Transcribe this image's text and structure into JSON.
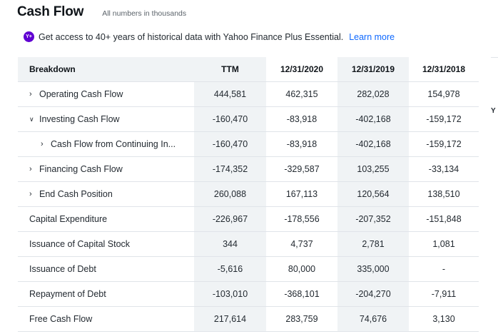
{
  "header": {
    "title": "Cash Flow",
    "subtitle": "All numbers in thousands"
  },
  "promo": {
    "badge": "Y+",
    "text": "Get access to 40+ years of historical data with Yahoo Finance Plus Essential.",
    "link": "Learn more"
  },
  "table": {
    "columns": [
      "Breakdown",
      "TTM",
      "12/31/2020",
      "12/31/2019",
      "12/31/2018"
    ],
    "rows": [
      {
        "label": "Operating Cash Flow",
        "values": [
          "444,581",
          "462,315",
          "282,028",
          "154,978"
        ]
      },
      {
        "label": "Investing Cash Flow",
        "values": [
          "-160,470",
          "-83,918",
          "-402,168",
          "-159,172"
        ]
      },
      {
        "label": "Cash Flow from Continuing In...",
        "values": [
          "-160,470",
          "-83,918",
          "-402,168",
          "-159,172"
        ]
      },
      {
        "label": "Financing Cash Flow",
        "values": [
          "-174,352",
          "-329,587",
          "103,255",
          "-33,134"
        ]
      },
      {
        "label": "End Cash Position",
        "values": [
          "260,088",
          "167,113",
          "120,564",
          "138,510"
        ]
      },
      {
        "label": "Capital Expenditure",
        "values": [
          "-226,967",
          "-178,556",
          "-207,352",
          "-151,848"
        ]
      },
      {
        "label": "Issuance of Capital Stock",
        "values": [
          "344",
          "4,737",
          "2,781",
          "1,081"
        ]
      },
      {
        "label": "Issuance of Debt",
        "values": [
          "-5,616",
          "80,000",
          "335,000",
          "-"
        ]
      },
      {
        "label": "Repayment of Debt",
        "values": [
          "-103,010",
          "-368,101",
          "-204,270",
          "-7,911"
        ]
      },
      {
        "label": "Free Cash Flow",
        "values": [
          "217,614",
          "283,759",
          "74,676",
          "3,130"
        ]
      }
    ]
  },
  "edge_text": "Y"
}
